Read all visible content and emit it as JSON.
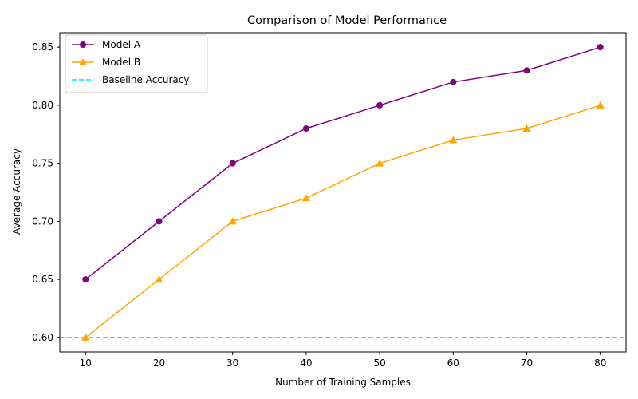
{
  "chart_data": {
    "type": "line",
    "title": "Comparison of Model Performance",
    "xlabel": "Number of Training Samples",
    "ylabel": "Average Accuracy",
    "x": [
      10,
      20,
      30,
      40,
      50,
      60,
      70,
      80
    ],
    "xlim": [
      6.5,
      83.5
    ],
    "ylim": [
      0.5875,
      0.8625
    ],
    "xticks": [
      10,
      20,
      30,
      40,
      50,
      60,
      70,
      80
    ],
    "yticks": [
      0.6,
      0.65,
      0.7,
      0.75,
      0.8,
      0.85
    ],
    "grid": false,
    "legend_position": "top-left",
    "series": [
      {
        "name": "Model A",
        "color": "#800080",
        "marker": "circle",
        "values": [
          0.65,
          0.7,
          0.75,
          0.78,
          0.8,
          0.82,
          0.83,
          0.85
        ]
      },
      {
        "name": "Model B",
        "color": "#ffa500",
        "marker": "triangle",
        "values": [
          0.6,
          0.65,
          0.7,
          0.72,
          0.75,
          0.77,
          0.78,
          0.8
        ]
      }
    ],
    "reference_lines": [
      {
        "name": "Baseline Accuracy",
        "y": 0.6,
        "color": "#00e5ee",
        "style": "dashed"
      }
    ]
  }
}
